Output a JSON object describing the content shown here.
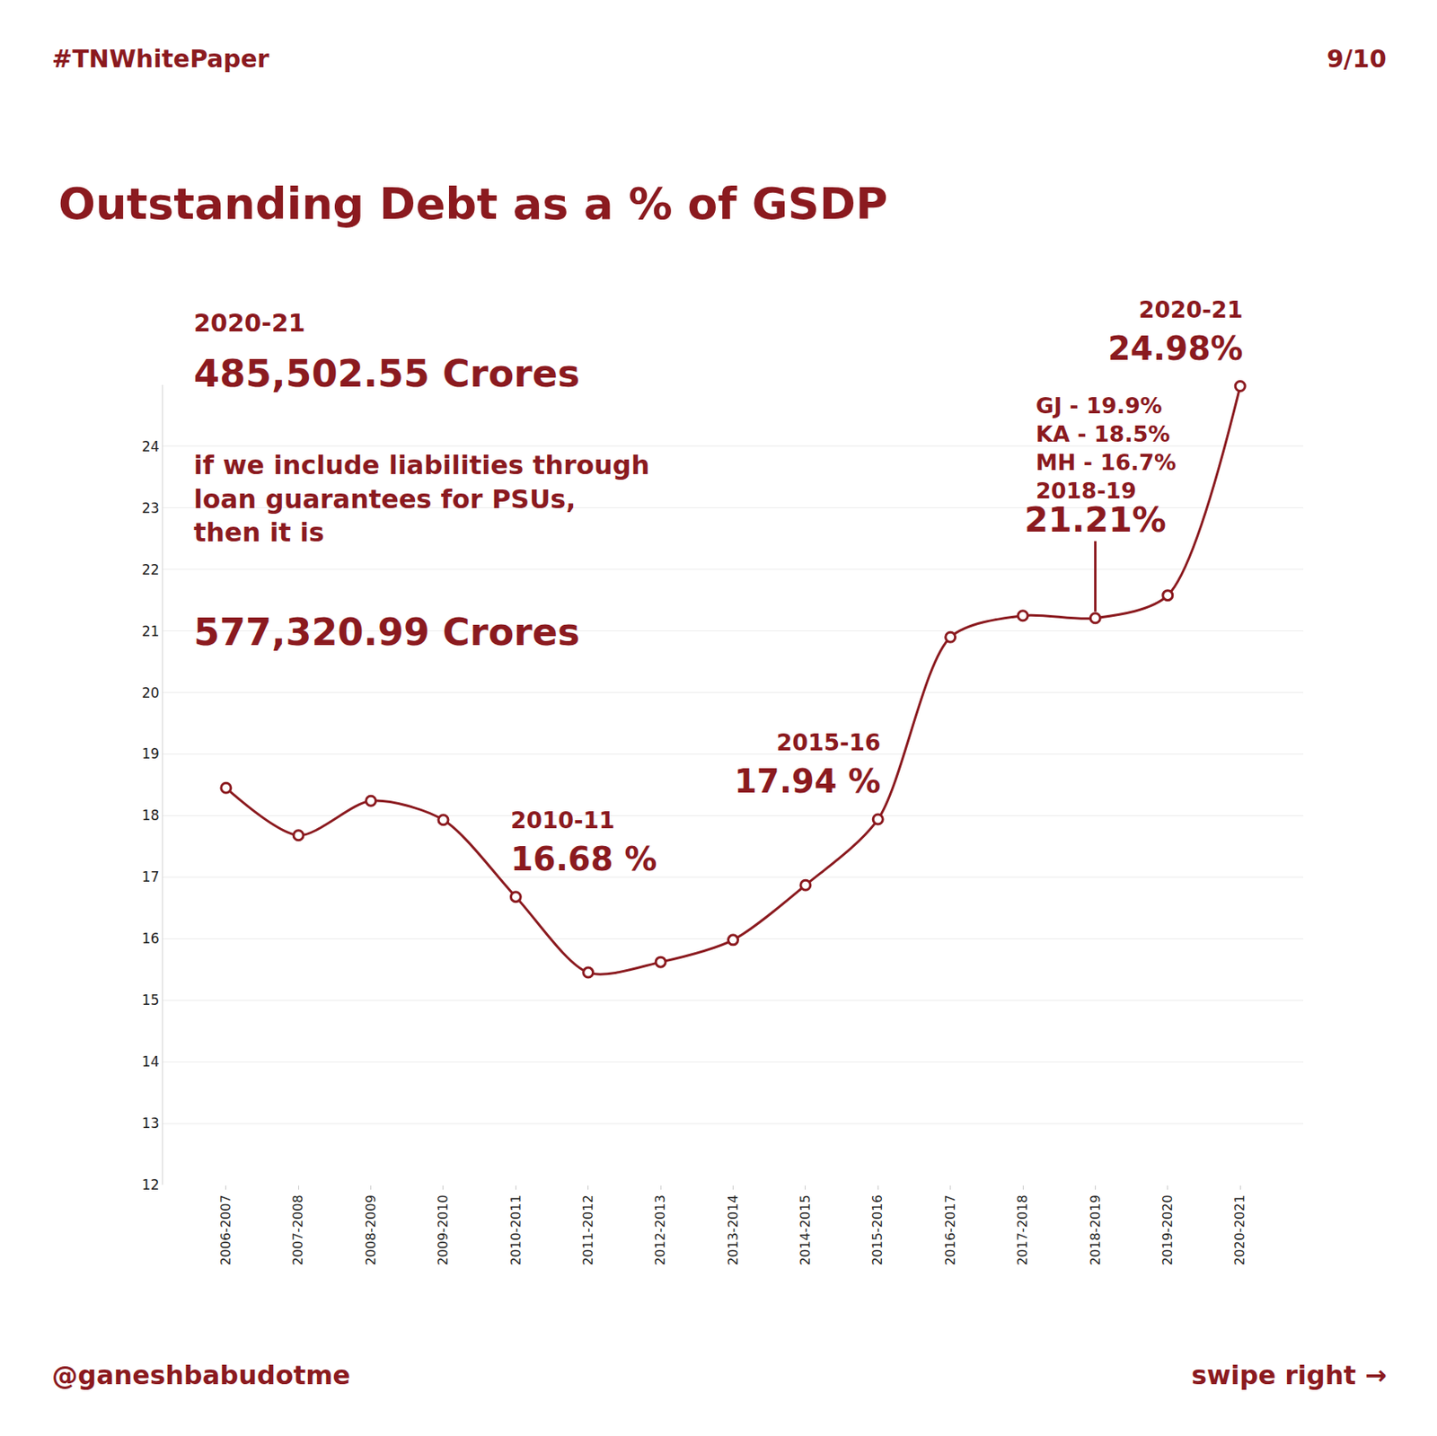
{
  "chart_data": {
    "type": "line",
    "title": "Outstanding Debt as a % of GSDP",
    "header": "#TNWhitePaper",
    "page": "9/10",
    "footer_left": "@ganeshbabudotme",
    "footer_right": "swipe right →",
    "categories": [
      "2006-2007",
      "2007-2008",
      "2008-2009",
      "2009-2010",
      "2010-2011",
      "2011-2012",
      "2012-2013",
      "2013-2014",
      "2014-2015",
      "2015-2016",
      "2016-2017",
      "2017-2018",
      "2018-2019",
      "2019-2020",
      "2020-2021"
    ],
    "values": [
      18.45,
      17.68,
      18.24,
      17.93,
      16.68,
      15.45,
      15.62,
      15.98,
      16.87,
      17.94,
      20.9,
      21.25,
      21.21,
      21.58,
      24.98
    ],
    "color": "#8b1a1f",
    "marker": "circle",
    "line_style": "solid",
    "ylim": [
      12,
      25
    ],
    "yticks": [
      12,
      13,
      14,
      15,
      16,
      17,
      18,
      19,
      20,
      21,
      22,
      23,
      24
    ],
    "grid": true,
    "annotations": [
      {
        "x": "2010-2011",
        "label": "2010-11",
        "text": "16.68 %"
      },
      {
        "x": "2015-2016",
        "label": "2015-16",
        "text": "17.94 %"
      },
      {
        "x": "2018-2019",
        "label": "2018-19",
        "text": "21.21%",
        "comparison": [
          "GJ - 19.9%",
          "KA - 18.5%",
          "MH - 16.7%"
        ]
      },
      {
        "x": "2020-2021",
        "label": "2020-21",
        "text": "24.98%"
      }
    ],
    "callout": {
      "year": "2020-21",
      "amount": "485,502.55 Crores",
      "note": [
        "if we include liabilities through",
        "loan guarantees for PSUs,",
        "then it is"
      ],
      "amount_with_guarantees": "577,320.99 Crores"
    }
  }
}
